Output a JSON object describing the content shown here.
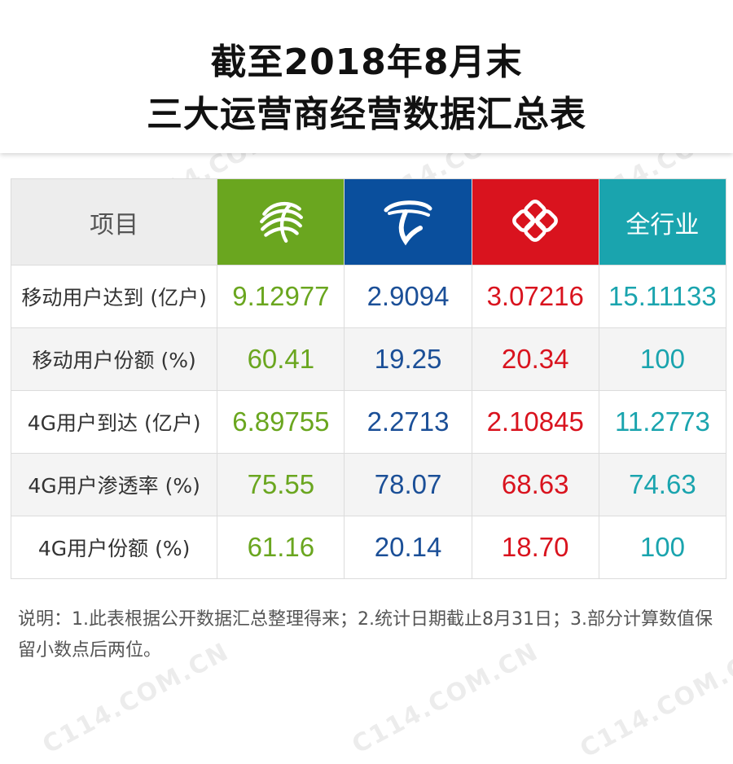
{
  "title": {
    "line1": "截至2018年8月末",
    "line2": "三大运营商经营数据汇总表"
  },
  "watermark_text": "C114.COM.CN",
  "table": {
    "header": {
      "item_label": "项目",
      "operators": [
        {
          "icon": "china-mobile-logo-icon",
          "color": "#6aa61f"
        },
        {
          "icon": "china-telecom-logo-icon",
          "color": "#0a4f9d"
        },
        {
          "icon": "china-unicom-logo-icon",
          "color": "#d9131e"
        }
      ],
      "industry_label": "全行业",
      "industry_color": "#1aa4ae"
    },
    "rows": [
      {
        "label": "移动用户达到 (亿户)",
        "values": [
          "9.12977",
          "2.9094",
          "3.07216",
          "15.11133"
        ]
      },
      {
        "label": "移动用户份额 (%)",
        "values": [
          "60.41",
          "19.25",
          "20.34",
          "100"
        ]
      },
      {
        "label": "4G用户到达 (亿户)",
        "values": [
          "6.89755",
          "2.2713",
          "2.10845",
          "11.2773"
        ]
      },
      {
        "label": "4G用户渗透率 (%)",
        "values": [
          "75.55",
          "78.07",
          "68.63",
          "74.63"
        ]
      },
      {
        "label": "4G用户份额 (%)",
        "values": [
          "61.16",
          "20.14",
          "18.70",
          "100"
        ]
      }
    ]
  },
  "note": "说明：1.此表根据公开数据汇总整理得来；2.统计日期截止8月31日；3.部分计算数值保留小数点后两位。"
}
